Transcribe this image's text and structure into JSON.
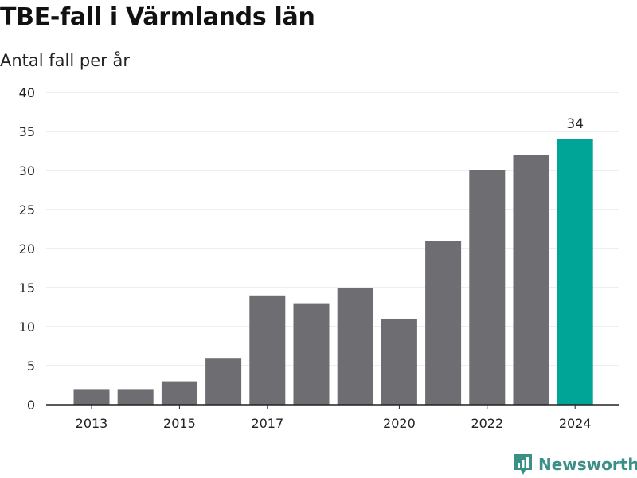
{
  "header": {
    "title": "TBE-fall i Värmlands län",
    "subtitle": "Antal fall per år"
  },
  "brand": {
    "name": "Newsworthy",
    "icon": "newsworthy-logo-icon",
    "color": "#3a8f86"
  },
  "chart_data": {
    "type": "bar",
    "title": "TBE-fall i Värmlands län",
    "subtitle": "Antal fall per år",
    "xlabel": "",
    "ylabel": "",
    "categories": [
      "2013",
      "2014",
      "2015",
      "2016",
      "2017",
      "2018",
      "2019",
      "2020",
      "2021",
      "2022",
      "2023",
      "2024"
    ],
    "tick_labels": [
      "2013",
      "",
      "2015",
      "",
      "2017",
      "",
      "",
      "2020",
      "",
      "2022",
      "",
      "2024"
    ],
    "values": [
      2,
      2,
      3,
      6,
      14,
      13,
      15,
      11,
      21,
      30,
      32,
      34
    ],
    "ylim": [
      0,
      40
    ],
    "yticks": [
      0,
      5,
      10,
      15,
      20,
      25,
      30,
      35,
      40
    ],
    "grid": true,
    "legend": "none",
    "bar_color": "#6e6d72",
    "highlight_color": "#00a597",
    "highlight_index": 11,
    "annotations": [
      {
        "category": "2024",
        "label": "34"
      }
    ]
  }
}
